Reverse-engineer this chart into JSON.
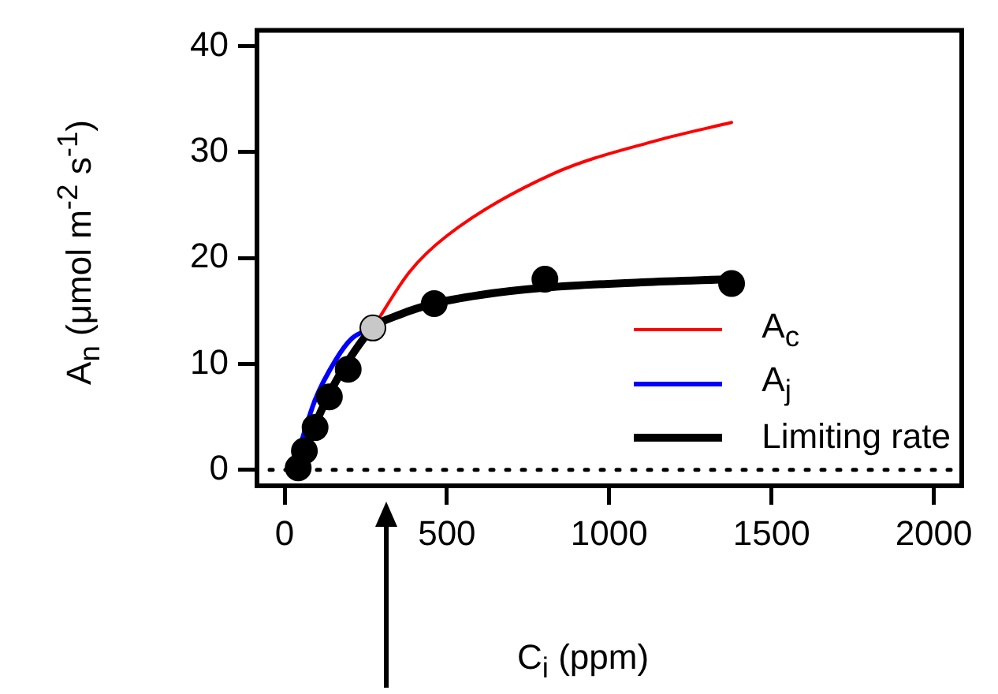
{
  "chart_data": {
    "type": "line",
    "xlabel": "C$_{i}$ (ppm)",
    "ylabel": "A$_{n}$ (μmol m$^{-2}$ s$^{-1}$)",
    "xlim": [
      -85,
      2086
    ],
    "ylim": [
      -1.5,
      41.5
    ],
    "xticks": [
      0,
      500,
      1000,
      1500,
      2000
    ],
    "yticks": [
      0,
      10,
      20,
      30,
      40
    ],
    "grid": false,
    "legend": "bottom right",
    "marker": "none",
    "line_style": "solid",
    "ref_lines": [
      {
        "axis": "y",
        "value": 0,
        "color": "#000000",
        "line_style": "dotted"
      }
    ],
    "series": [
      {
        "name": "A$_{c}$",
        "type": "line",
        "color": "#ff0000",
        "x": [
          272,
          385,
          500,
          823,
          1147,
          1377
        ],
        "values": [
          13.4,
          18.7,
          22.1,
          27.9,
          31.1,
          32.8
        ]
      },
      {
        "name": "A$_{j}$",
        "type": "line",
        "color": "#0000ff",
        "x": [
          37,
          94,
          158,
          207,
          272
        ],
        "values": [
          1.2,
          6.6,
          10.4,
          12.4,
          13.4
        ]
      },
      {
        "name": "Limiting rate",
        "type": "line",
        "color": "#000000",
        "x": [
          42,
          61,
          94,
          138,
          196,
          272,
          350,
          461,
          600,
          802,
          1100,
          1377
        ],
        "values": [
          0.2,
          2,
          4.3,
          7.2,
          10.3,
          13.4,
          14.6,
          15.7,
          16.5,
          17.2,
          17.7,
          18.0
        ]
      },
      {
        "type": "scatter",
        "marker": "circle",
        "color": "#000000",
        "x": [
          42,
          61,
          94,
          138,
          196,
          461,
          802,
          1377
        ],
        "values": [
          0.2,
          1.8,
          4.0,
          6.9,
          9.5,
          15.7,
          18.0,
          17.6
        ]
      },
      {
        "type": "scatter",
        "marker": "circle",
        "color": "#c8c8c8",
        "x": [
          272
        ],
        "values": [
          13.4
        ]
      }
    ]
  }
}
